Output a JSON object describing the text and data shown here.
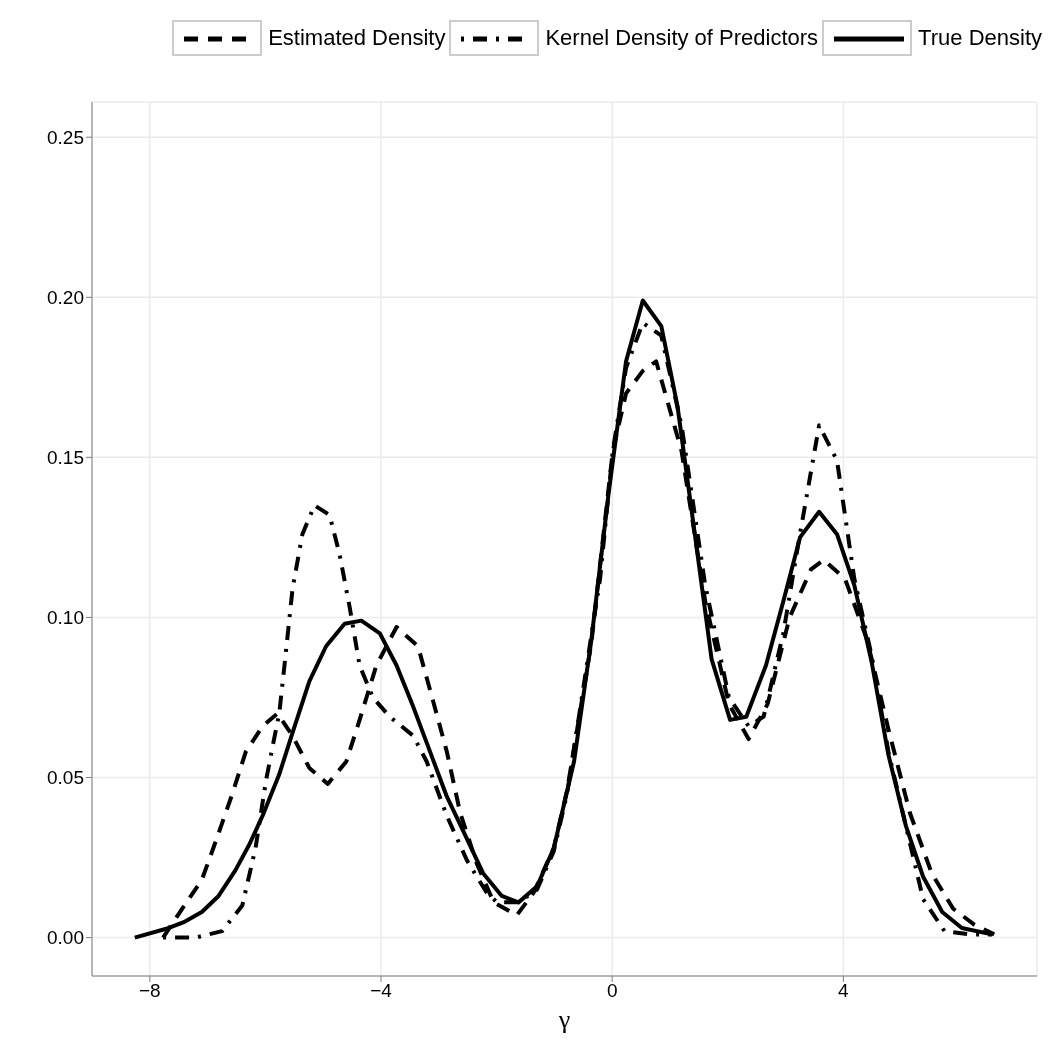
{
  "chart_data": {
    "type": "line",
    "xlabel": "γ",
    "legend": "top",
    "grid": true,
    "xlim": [
      -9,
      7.35
    ],
    "ylim": [
      -0.012,
      0.261
    ],
    "xticks": [
      {
        "value": -8,
        "label": "−8"
      },
      {
        "value": -4,
        "label": "−4"
      },
      0,
      4
    ],
    "yticks": [
      {
        "value": 0,
        "label": "0.00"
      },
      0.05,
      {
        "value": 0.1,
        "label": "0.10"
      },
      0.15,
      {
        "value": 0.2,
        "label": "0.20"
      },
      0.25
    ],
    "series": [
      {
        "name": "Estimated Density",
        "color": "#000000",
        "line_style": "dashed",
        "x": [
          -7.77,
          -7.59,
          -7.1,
          -6.86,
          -6.57,
          -6.34,
          -6.05,
          -5.79,
          -5.53,
          -5.24,
          -4.92,
          -4.6,
          -4.37,
          -4.08,
          -3.73,
          -3.36,
          -3.1,
          -2.86,
          -2.63,
          -2.34,
          -2.05,
          -1.65,
          -1.36,
          -1.01,
          -0.78,
          -0.36,
          0.01,
          0.24,
          0.53,
          0.76,
          1.2,
          1.61,
          2.02,
          2.36,
          2.69,
          3.07,
          3.44,
          3.66,
          4.03,
          4.41,
          4.78,
          5.15,
          5.53,
          5.9,
          6.27,
          6.61
        ],
        "values": [
          0.0,
          0.005,
          0.018,
          0.03,
          0.045,
          0.058,
          0.066,
          0.07,
          0.063,
          0.053,
          0.048,
          0.055,
          0.068,
          0.085,
          0.097,
          0.091,
          0.074,
          0.058,
          0.039,
          0.023,
          0.011,
          0.007,
          0.014,
          0.028,
          0.046,
          0.092,
          0.152,
          0.17,
          0.177,
          0.18,
          0.152,
          0.105,
          0.073,
          0.062,
          0.073,
          0.1,
          0.115,
          0.118,
          0.112,
          0.093,
          0.065,
          0.039,
          0.02,
          0.009,
          0.004,
          0.001
        ]
      },
      {
        "name": "Kernel Density of Predictors",
        "color": "#000000",
        "line_style": "dashdot",
        "x": [
          -7.77,
          -7.21,
          -6.75,
          -6.4,
          -6.17,
          -5.99,
          -5.85,
          -5.76,
          -5.67,
          -5.53,
          -5.36,
          -5.15,
          -4.89,
          -4.72,
          -4.54,
          -4.37,
          -4.14,
          -3.85,
          -3.44,
          -3.21,
          -2.86,
          -2.51,
          -2.17,
          -1.99,
          -1.62,
          -1.3,
          -1.01,
          -0.78,
          -0.21,
          0.01,
          0.24,
          0.53,
          0.85,
          1.2,
          1.61,
          2.02,
          2.36,
          2.62,
          2.96,
          3.22,
          3.58,
          3.89,
          4.19,
          4.49,
          4.78,
          5.08,
          5.38,
          5.75,
          6.2,
          6.57
        ],
        "values": [
          0.0,
          0.0,
          0.002,
          0.01,
          0.028,
          0.049,
          0.062,
          0.07,
          0.085,
          0.109,
          0.126,
          0.135,
          0.132,
          0.12,
          0.103,
          0.085,
          0.075,
          0.069,
          0.063,
          0.055,
          0.038,
          0.024,
          0.014,
          0.011,
          0.011,
          0.015,
          0.027,
          0.045,
          0.112,
          0.152,
          0.178,
          0.192,
          0.188,
          0.16,
          0.11,
          0.075,
          0.066,
          0.069,
          0.095,
          0.123,
          0.16,
          0.149,
          0.112,
          0.088,
          0.058,
          0.035,
          0.012,
          0.002,
          0.001,
          0.001
        ]
      },
      {
        "name": "True Density",
        "color": "#000000",
        "line_style": "solid",
        "x": [
          -8.26,
          -7.67,
          -7.39,
          -7.1,
          -6.81,
          -6.52,
          -6.28,
          -6.05,
          -5.76,
          -5.53,
          -5.24,
          -4.95,
          -4.63,
          -4.34,
          -4.02,
          -3.73,
          -3.44,
          -3.15,
          -2.86,
          -2.57,
          -2.23,
          -1.91,
          -1.62,
          -1.3,
          -1.01,
          -0.66,
          -0.36,
          -0.06,
          0.24,
          0.53,
          0.85,
          1.13,
          1.43,
          1.72,
          2.04,
          2.32,
          2.66,
          2.96,
          3.25,
          3.58,
          3.89,
          4.19,
          4.49,
          4.78,
          5.08,
          5.38,
          5.71,
          6.05,
          6.57
        ],
        "values": [
          0.0,
          0.003,
          0.005,
          0.008,
          0.013,
          0.021,
          0.029,
          0.038,
          0.051,
          0.064,
          0.08,
          0.091,
          0.098,
          0.099,
          0.095,
          0.085,
          0.072,
          0.058,
          0.044,
          0.033,
          0.02,
          0.013,
          0.011,
          0.016,
          0.028,
          0.055,
          0.093,
          0.139,
          0.18,
          0.199,
          0.191,
          0.166,
          0.126,
          0.087,
          0.068,
          0.069,
          0.085,
          0.105,
          0.125,
          0.133,
          0.126,
          0.11,
          0.086,
          0.057,
          0.035,
          0.019,
          0.008,
          0.003,
          0.001
        ]
      }
    ]
  }
}
